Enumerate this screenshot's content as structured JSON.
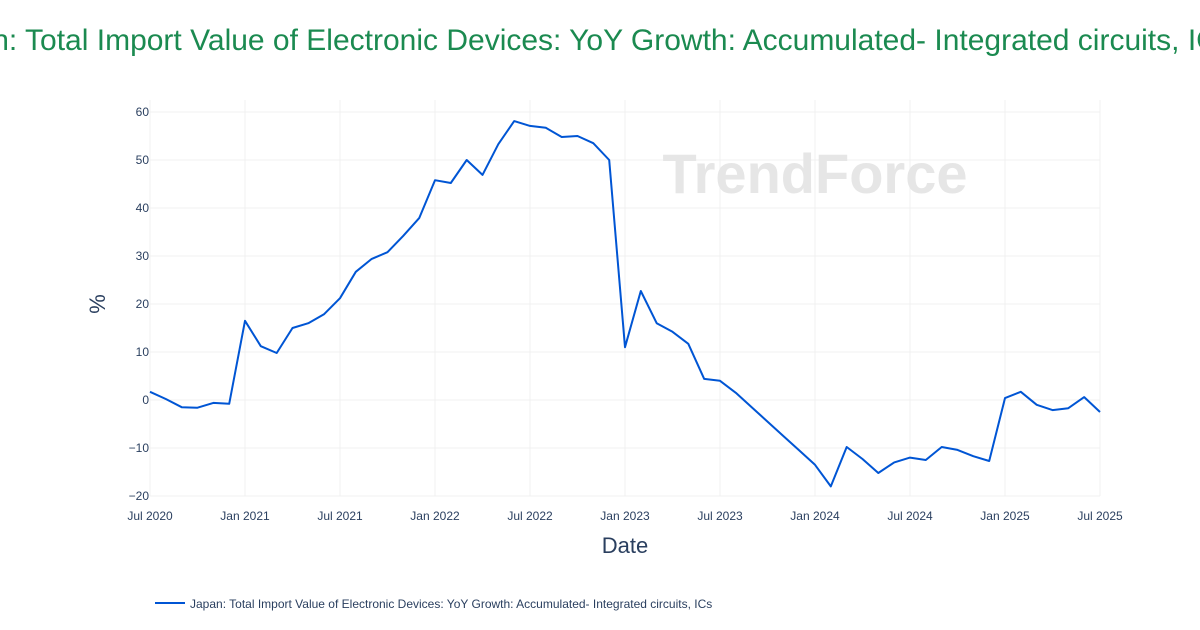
{
  "chart_data": {
    "type": "line",
    "title": "Japan: Total Import Value of Electronic Devices: YoY Growth: Accumulated- Integrated circuits, ICs",
    "xlabel": "Date",
    "ylabel": "%",
    "xlim": [
      "2020-07",
      "2025-07"
    ],
    "ylim": [
      -20,
      60
    ],
    "grid": true,
    "legend_position": "bottom-left",
    "x_ticks": [
      "Jul 2020",
      "Jan 2021",
      "Jul 2021",
      "Jan 2022",
      "Jul 2022",
      "Jan 2023",
      "Jul 2023",
      "Jan 2024",
      "Jul 2024",
      "Jan 2025",
      "Jul 2025"
    ],
    "y_ticks": [
      60,
      50,
      40,
      30,
      20,
      10,
      0,
      -10,
      -20
    ],
    "y_tick_labels": [
      "60",
      "50",
      "40",
      "30",
      "20",
      "10",
      "0",
      "−10",
      "−20"
    ],
    "watermark": "TrendForce",
    "series": [
      {
        "name": "Japan: Total Import Value of Electronic Devices: YoY Growth: Accumulated- Integrated circuits, ICs",
        "color": "#0055d4",
        "x": [
          "2020-07",
          "2020-08",
          "2020-09",
          "2020-10",
          "2020-11",
          "2020-12",
          "2021-01",
          "2021-02",
          "2021-03",
          "2021-04",
          "2021-05",
          "2021-06",
          "2021-07",
          "2021-08",
          "2021-09",
          "2021-10",
          "2021-11",
          "2021-12",
          "2022-01",
          "2022-02",
          "2022-03",
          "2022-04",
          "2022-05",
          "2022-06",
          "2022-07",
          "2022-08",
          "2022-09",
          "2022-10",
          "2022-11",
          "2022-12",
          "2023-01",
          "2023-02",
          "2023-03",
          "2023-04",
          "2023-05",
          "2023-06",
          "2023-07",
          "2023-08",
          "2023-09",
          "2023-10",
          "2023-11",
          "2023-12",
          "2024-01",
          "2024-02",
          "2024-03",
          "2024-04",
          "2024-05",
          "2024-06",
          "2024-07",
          "2024-08",
          "2024-09",
          "2024-10",
          "2024-11",
          "2024-12",
          "2025-01",
          "2025-02",
          "2025-03",
          "2025-04",
          "2025-05",
          "2025-06",
          "2025-07"
        ],
        "values": [
          1.7,
          0.2,
          -1.5,
          -1.6,
          -0.6,
          -0.8,
          16.5,
          11.2,
          9.8,
          15.0,
          16.0,
          17.9,
          21.2,
          26.7,
          29.4,
          30.8,
          34.2,
          37.9,
          45.8,
          45.2,
          50.0,
          46.9,
          53.3,
          58.1,
          57.1,
          56.7,
          54.8,
          55.0,
          53.5,
          50.0,
          11.0,
          22.7,
          16.0,
          14.2,
          11.7,
          4.4,
          4.0,
          1.5,
          -1.5,
          -4.5,
          -7.5,
          -10.5,
          -13.5,
          -18.0,
          -9.8,
          -12.3,
          -15.2,
          -13.0,
          -12.0,
          -12.5,
          -9.8,
          -10.4,
          -11.7,
          -12.7,
          0.4,
          1.7,
          -1.0,
          -2.1,
          -1.7,
          0.6,
          -2.5
        ]
      }
    ]
  }
}
